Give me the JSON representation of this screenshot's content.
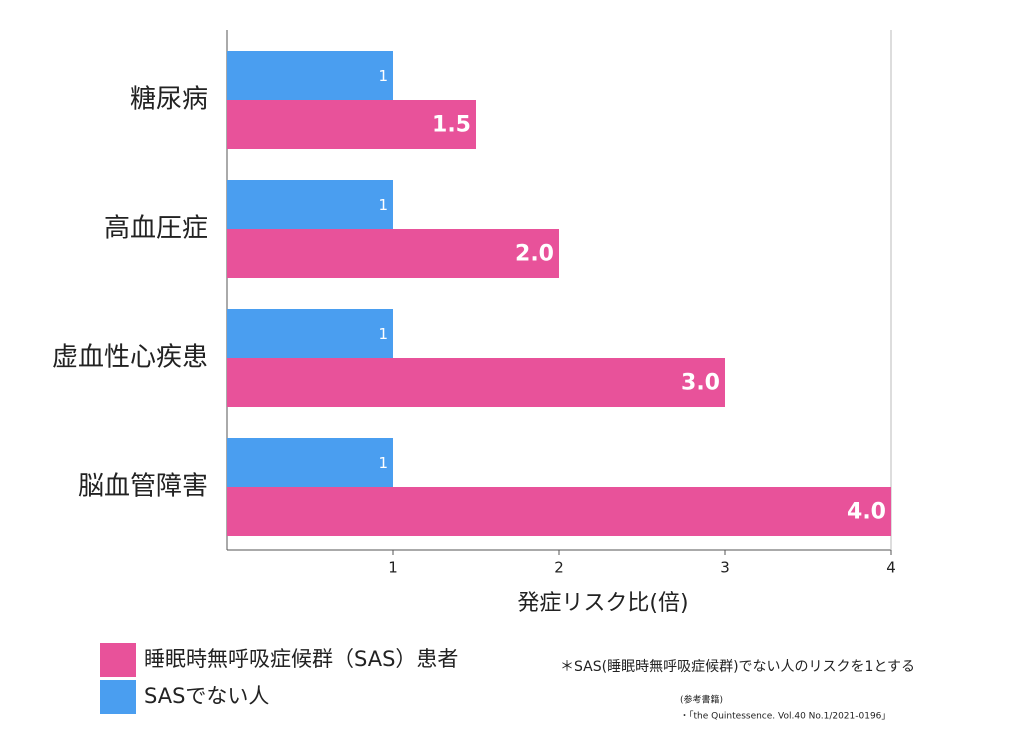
{
  "chart_data": {
    "type": "bar",
    "orientation": "horizontal",
    "categories": [
      "糖尿病",
      "高血圧症",
      "虚血性心疾患",
      "脳血管障害"
    ],
    "series": [
      {
        "name": "睡眠時無呼吸症候群（SAS）患者",
        "color": "#e8529a",
        "values": [
          1.5,
          2.0,
          3.0,
          4.0
        ],
        "value_labels": [
          "1.5",
          "2.0",
          "3.0",
          "4.0"
        ]
      },
      {
        "name": "SASでない人",
        "color": "#4a9ef0",
        "values": [
          1,
          1,
          1,
          1
        ]
      }
    ],
    "x_label": "発症リスク比(倍)",
    "xlim": [
      0,
      4
    ],
    "xticks": [
      1,
      2,
      3,
      4
    ],
    "grid": false,
    "note": "＊SAS(睡眠時無呼吸症候群)でない人のリスクを1とする",
    "source_heading": "(参考書籍)",
    "source": "・「the Quintessence. Vol.40 No.1/2021-0196」"
  }
}
